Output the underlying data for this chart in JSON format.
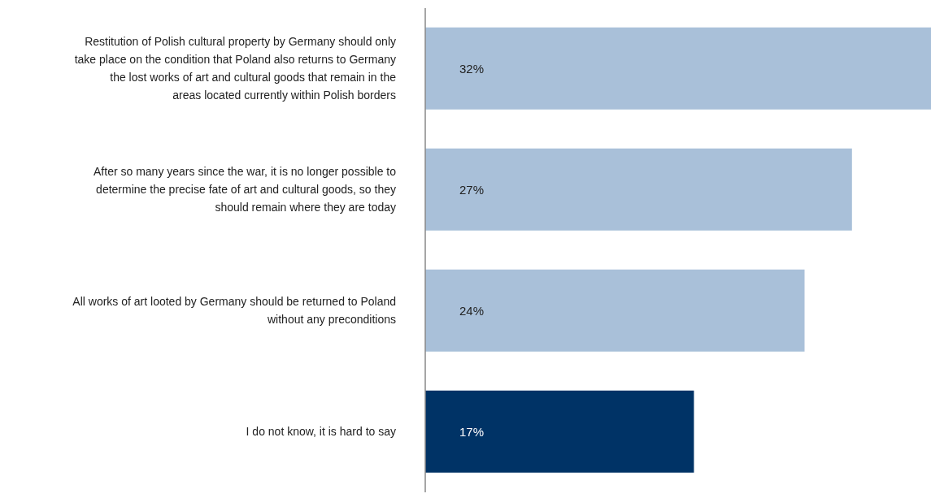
{
  "chart_data": {
    "type": "bar",
    "orientation": "horizontal",
    "categories": [
      "Restitution of Polish cultural property by Germany should only take place on the condition that Poland also returns to Germany the lost works of art and cultural goods that remain in the areas located currently within Polish borders",
      "After so many years since the war, it is no longer possible to determine the precise fate of art and cultural goods, so they should remain where they are today",
      "All works of art looted by Germany should be returned to Poland without any preconditions",
      "I do not know, it is hard to say"
    ],
    "values": [
      32,
      27,
      24,
      17
    ],
    "colors": [
      "#a9c0d9",
      "#a9c0d9",
      "#a9c0d9",
      "#003366"
    ],
    "value_labels": [
      "32%",
      "27%",
      "24%",
      "17%"
    ]
  }
}
